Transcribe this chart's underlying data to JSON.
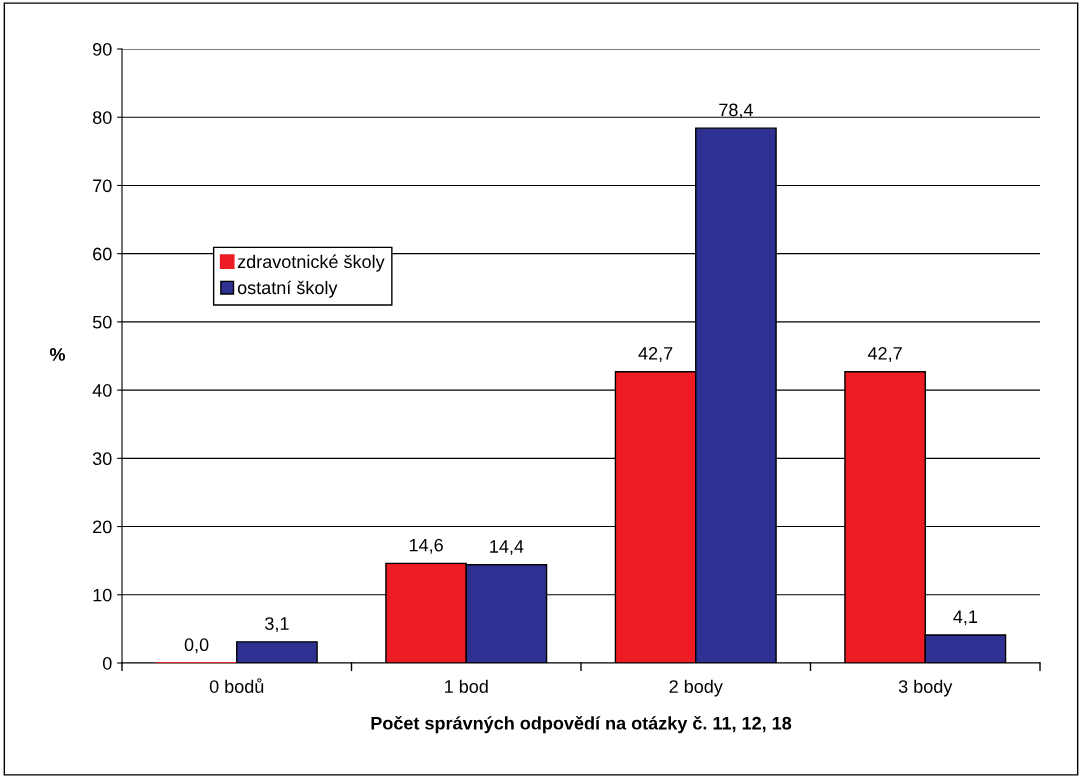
{
  "chart_data": {
    "type": "bar",
    "xlabel": "Počet správných odpovědí na otázky č. 11, 12, 18",
    "ylabel": "%",
    "categories": [
      "0 bodů",
      "1 bod",
      "2 body",
      "3 body"
    ],
    "series": [
      {
        "name": "zdravotnické školy",
        "color": "#ed1c24",
        "values": [
          0.0,
          14.6,
          42.7,
          42.7
        ],
        "value_labels": [
          "0,0",
          "14,6",
          "42,7",
          "42,7"
        ]
      },
      {
        "name": "ostatní školy",
        "color": "#2e3192",
        "values": [
          3.1,
          14.4,
          78.4,
          4.1
        ],
        "value_labels": [
          "3,1",
          "14,4",
          "78,4",
          "4,1"
        ]
      }
    ],
    "ylim": [
      0,
      90
    ],
    "yticks": [
      0,
      10,
      20,
      30,
      40,
      50,
      60,
      70,
      80,
      90
    ],
    "grid": "y",
    "legend": "left"
  }
}
